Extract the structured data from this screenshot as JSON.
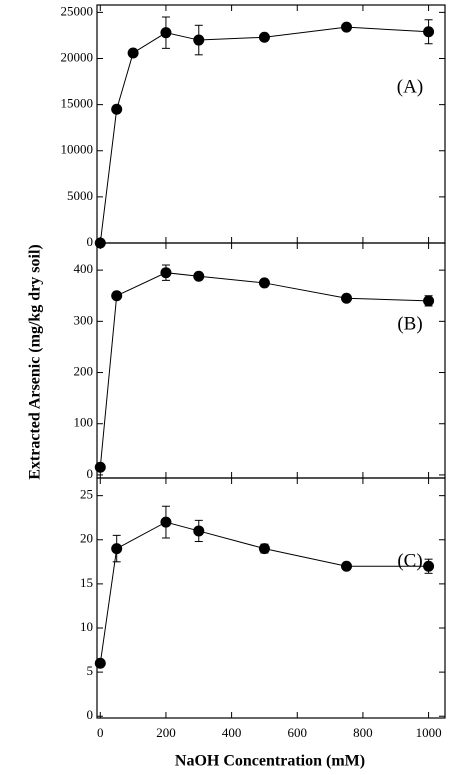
{
  "ylabel": "Extracted Arsenic (mg/kg dry soil)",
  "xlabel": "NaOH Concentration (mM)",
  "chart_data": [
    {
      "type": "line",
      "annotation": "(A)",
      "x": [
        0,
        50,
        100,
        200,
        300,
        500,
        750,
        1000
      ],
      "values": [
        0,
        14500,
        20600,
        22800,
        22000,
        22300,
        23400,
        22900
      ],
      "errors": [
        0,
        0,
        0,
        1700,
        1600,
        0,
        0,
        1300
      ],
      "ylim": [
        0,
        25800
      ],
      "yticks": [
        0,
        5000,
        10000,
        15000,
        20000,
        25000
      ],
      "color": "#000000"
    },
    {
      "type": "line",
      "annotation": "(B)",
      "x": [
        0,
        50,
        200,
        300,
        500,
        750,
        1000
      ],
      "values": [
        15,
        350,
        395,
        388,
        375,
        345,
        340
      ],
      "errors": [
        0,
        0,
        15,
        0,
        0,
        0,
        10
      ],
      "ylim": [
        -6,
        453
      ],
      "yticks": [
        0,
        100,
        200,
        300,
        400
      ],
      "color": "#000000"
    },
    {
      "type": "line",
      "annotation": "(C)",
      "x": [
        0,
        50,
        200,
        300,
        500,
        750,
        1000
      ],
      "values": [
        6,
        19,
        22,
        21,
        19,
        17,
        17
      ],
      "errors": [
        0,
        1.5,
        1.8,
        1.2,
        0.5,
        0,
        0.8
      ],
      "ylim": [
        -0.2,
        27
      ],
      "yticks": [
        0,
        5,
        10,
        15,
        20,
        25
      ],
      "xlim": [
        -10,
        1050
      ],
      "xticks": [
        0,
        200,
        400,
        600,
        800,
        1000
      ],
      "color": "#000000"
    }
  ]
}
